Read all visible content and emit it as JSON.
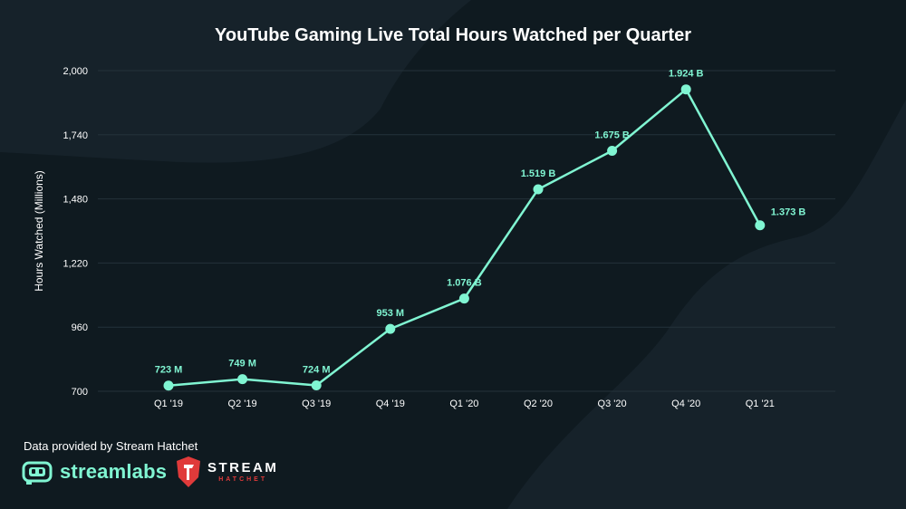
{
  "colors": {
    "background": "#0f1a20",
    "line": "#80f5d2",
    "label": "#80f5d2",
    "axis_text": "#ffffff",
    "grid": "#24323a",
    "brand_streamlabs": "#80f5d2",
    "brand_hatchet": "#e03a3a"
  },
  "chart_data": {
    "type": "line",
    "title": "YouTube Gaming Live Total Hours Watched per Quarter",
    "xlabel": "",
    "ylabel": "Hours Watched (Millions)",
    "categories": [
      "Q1 '19",
      "Q2 '19",
      "Q3 '19",
      "Q4 '19",
      "Q1 '20",
      "Q2 '20",
      "Q3 '20",
      "Q4 '20",
      "Q1 '21"
    ],
    "values": [
      723,
      749,
      724,
      953,
      1076,
      1519,
      1675,
      1924,
      1373
    ],
    "data_labels": [
      "723 M",
      "749 M",
      "724 M",
      "953 M",
      "1.076 B",
      "1.519 B",
      "1.675 B",
      "1.924 B",
      "1.373 B"
    ],
    "ylim": [
      700,
      2000
    ],
    "yticks": [
      700,
      960,
      1220,
      1480,
      1740,
      2000
    ],
    "ytick_labels": [
      "700",
      "960",
      "1,220",
      "1,480",
      "1,740",
      "2,000"
    ],
    "grid": true,
    "legend": false
  },
  "footer": {
    "credit": "Data provided by Stream Hatchet",
    "streamlabs_logo_text": "streamlabs",
    "hatchet_logo_line1": "STREAM",
    "hatchet_logo_line2": "HATCHET",
    "streamlabs_icon": "robot-face-icon",
    "hatchet_icon": "hatchet-shield-icon"
  }
}
